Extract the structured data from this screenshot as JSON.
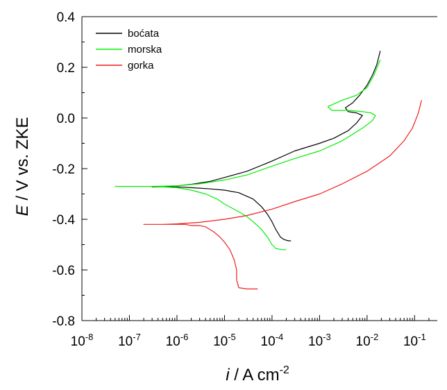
{
  "chart_data": {
    "type": "line",
    "xscale": "log",
    "xlim": [
      1e-08,
      0.3
    ],
    "ylim": [
      -0.8,
      0.4
    ],
    "xticks": [
      {
        "value": 1e-08,
        "base": "10",
        "exp": "-8"
      },
      {
        "value": 1e-07,
        "base": "10",
        "exp": "-7"
      },
      {
        "value": 1e-06,
        "base": "10",
        "exp": "-6"
      },
      {
        "value": 1e-05,
        "base": "10",
        "exp": "-5"
      },
      {
        "value": 0.0001,
        "base": "10",
        "exp": "-4"
      },
      {
        "value": 0.001,
        "base": "10",
        "exp": "-3"
      },
      {
        "value": 0.01,
        "base": "10",
        "exp": "-2"
      },
      {
        "value": 0.1,
        "base": "10",
        "exp": "-1"
      }
    ],
    "yticks": [
      {
        "value": 0.4,
        "label": "0.4"
      },
      {
        "value": 0.2,
        "label": "0.2"
      },
      {
        "value": 0.0,
        "label": "0.0"
      },
      {
        "value": -0.2,
        "label": "-0.2"
      },
      {
        "value": -0.4,
        "label": "-0.4"
      },
      {
        "value": -0.6,
        "label": "-0.6"
      },
      {
        "value": -0.8,
        "label": "-0.8"
      }
    ],
    "xlabel": {
      "italic": "i",
      "text": " / A cm",
      "sup": "-2"
    },
    "ylabel": {
      "italic": "E",
      "text": " / V vs. ZKE"
    },
    "grid": false,
    "legend_position": "top-left",
    "series": [
      {
        "name": "boćata",
        "color": "#000000",
        "x": [
          0.00025,
          0.00022,
          0.00018,
          0.00015,
          0.00012,
          0.0001,
          8e-05,
          6e-05,
          4e-05,
          2e-05,
          1e-05,
          5e-06,
          2e-06,
          1e-06,
          5e-07,
          3e-07,
          5e-07,
          1e-06,
          2e-06,
          5e-06,
          1e-05,
          3e-05,
          0.0001,
          0.0003,
          0.001,
          0.002,
          0.004,
          0.006,
          0.008,
          0.006,
          0.004,
          0.0035,
          0.005,
          0.007,
          0.01,
          0.013,
          0.016,
          0.019
        ],
        "y": [
          -0.485,
          -0.485,
          -0.48,
          -0.47,
          -0.44,
          -0.41,
          -0.38,
          -0.35,
          -0.32,
          -0.295,
          -0.285,
          -0.28,
          -0.275,
          -0.272,
          -0.272,
          -0.272,
          -0.271,
          -0.268,
          -0.262,
          -0.25,
          -0.235,
          -0.21,
          -0.17,
          -0.13,
          -0.1,
          -0.08,
          -0.05,
          -0.02,
          0.01,
          0.02,
          0.025,
          0.04,
          0.06,
          0.09,
          0.13,
          0.17,
          0.21,
          0.265
        ]
      },
      {
        "name": "morska",
        "color": "#00ee00",
        "x": [
          0.0002,
          0.00016,
          0.00012,
          0.0001,
          8e-05,
          6e-05,
          4e-05,
          3e-05,
          2e-05,
          1e-05,
          7e-06,
          4e-06,
          2e-06,
          1e-06,
          3e-07,
          5e-08,
          3e-07,
          1e-06,
          3e-06,
          1e-05,
          3e-05,
          0.0001,
          0.0003,
          0.001,
          0.003,
          0.008,
          0.013,
          0.015,
          0.012,
          0.008,
          0.004,
          0.0018,
          0.0015,
          0.003,
          0.006,
          0.01,
          0.014,
          0.019
        ],
        "y": [
          -0.52,
          -0.52,
          -0.515,
          -0.5,
          -0.47,
          -0.44,
          -0.41,
          -0.39,
          -0.37,
          -0.34,
          -0.32,
          -0.3,
          -0.285,
          -0.275,
          -0.27,
          -0.27,
          -0.27,
          -0.268,
          -0.26,
          -0.245,
          -0.225,
          -0.19,
          -0.16,
          -0.13,
          -0.09,
          -0.04,
          -0.01,
          0.01,
          0.02,
          0.025,
          0.03,
          0.03,
          0.045,
          0.07,
          0.09,
          0.12,
          0.17,
          0.23
        ]
      },
      {
        "name": "gorka",
        "color": "#ee1c1c",
        "x": [
          5e-05,
          3e-05,
          2e-05,
          1.8e-05,
          1.8e-05,
          1.6e-05,
          1.3e-05,
          1e-05,
          8e-06,
          6e-06,
          4e-06,
          3e-06,
          2e-06,
          1.5e-06,
          1e-06,
          5e-07,
          2e-07,
          5e-07,
          1e-06,
          3e-06,
          1e-05,
          3e-05,
          0.0001,
          0.0003,
          0.001,
          0.003,
          0.01,
          0.03,
          0.06,
          0.09,
          0.12,
          0.14
        ],
        "y": [
          -0.675,
          -0.675,
          -0.67,
          -0.64,
          -0.6,
          -0.56,
          -0.52,
          -0.49,
          -0.47,
          -0.45,
          -0.43,
          -0.425,
          -0.425,
          -0.42,
          -0.42,
          -0.42,
          -0.42,
          -0.42,
          -0.418,
          -0.412,
          -0.4,
          -0.385,
          -0.36,
          -0.33,
          -0.3,
          -0.26,
          -0.21,
          -0.15,
          -0.09,
          -0.04,
          0.02,
          0.07
        ]
      }
    ]
  }
}
